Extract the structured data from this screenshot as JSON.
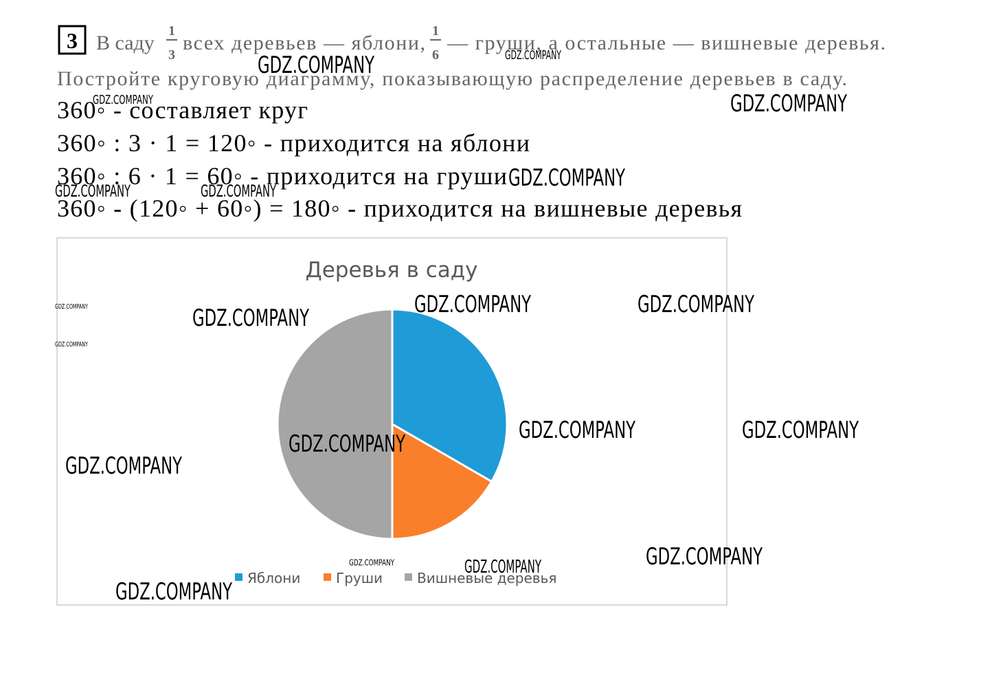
{
  "problem": {
    "number": "3",
    "text_1": "В саду",
    "fraction_1": {
      "numerator": "1",
      "denominator": "3"
    },
    "text_2": "всех деревьев — яблони,",
    "fraction_2": {
      "numerator": "1",
      "denominator": "6"
    },
    "text_3": "— груши, а остальные — вишневые деревья.",
    "line_2": "Постройте круговую диаграмму, показывающую распределение деревьев в саду."
  },
  "solution": [
    "360◦ - составляет круг",
    "360◦ : 3 · 1 = 120◦ - приходится на яблони",
    "360◦ : 6 · 1 = 60◦ - приходится на груши",
    "360◦ - (120◦ + 60◦) = 180◦ - приходится на вишневые деревья"
  ],
  "chart_data": {
    "type": "pie",
    "title": "Деревья в саду",
    "categories": [
      "Яблони",
      "Груши",
      "Вишневые деревья"
    ],
    "values": [
      120,
      60,
      180
    ],
    "colors": [
      "#1f9bd7",
      "#fa7f2a",
      "#a5a5a5"
    ],
    "legend": "bottom"
  },
  "watermarks": [
    "GDZ.COMPANY",
    "GDZ.COMPANY",
    "GDZ.COMPANY",
    "GDZ.COMPANY",
    "GDZ.COMPANY",
    "GDZ.COMPANY",
    "GDZ.COMPANY",
    "GDZ.COMPANY",
    "GDZ.COMPANY",
    "GDZ.COMPANY",
    "GDZ.COMPANY",
    "GDZ.COMPANY",
    "GDZ.COMPANY",
    "GDZ.COMPANY",
    "GDZ.COMPANY",
    "GDZ.COMPANY",
    "GDZ.COMPANY",
    "GDZ.COMPANY",
    "GDZ.COMPANY",
    "GDZ.COMPANY"
  ]
}
